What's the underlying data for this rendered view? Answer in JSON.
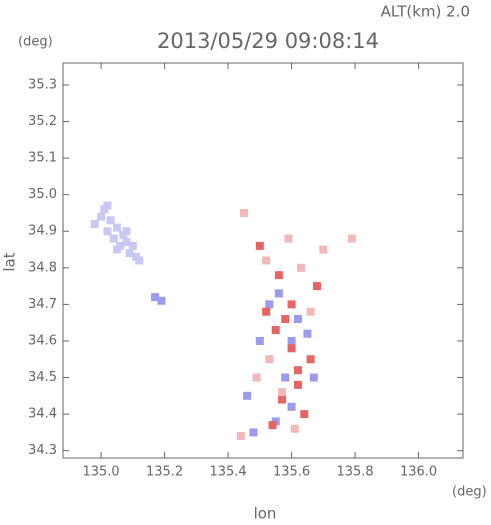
{
  "chart_data": {
    "type": "scatter",
    "title": "2013/05/29 09:08:14",
    "subtitle": "ALT(km) 2.0",
    "x_label": "lon",
    "y_label": "lat",
    "x_unit": "(deg)",
    "y_unit": "(deg)",
    "xlim": [
      134.88,
      136.14
    ],
    "ylim": [
      34.28,
      35.36
    ],
    "xticks": [
      {
        "value": 135,
        "label": "135.0"
      },
      135.2,
      135.4,
      135.6,
      135.8,
      {
        "value": 136,
        "label": "136.0"
      }
    ],
    "yticks": [
      {
        "value": 34.3,
        "label": "34.3"
      },
      34.4,
      34.5,
      34.6,
      34.7,
      34.8,
      34.9,
      {
        "value": 35,
        "label": "35.0"
      },
      35.1,
      35.2,
      35.3
    ],
    "series": [
      {
        "color": "#c8c8f2",
        "x": [
          134.98,
          135.0,
          135.01,
          135.02,
          135.03,
          135.04,
          135.05,
          135.06,
          135.07,
          135.08,
          135.09,
          135.1,
          135.11,
          135.12,
          135.02,
          135.05,
          135.08
        ],
        "y": [
          34.92,
          34.94,
          34.96,
          34.9,
          34.93,
          34.88,
          34.91,
          34.86,
          34.89,
          34.87,
          34.84,
          34.86,
          34.83,
          34.82,
          34.97,
          34.85,
          34.9
        ]
      },
      {
        "color": "#9a9aee",
        "x": [
          135.17,
          135.19,
          135.56,
          135.6,
          135.5,
          135.67,
          135.48,
          135.55,
          135.62,
          135.58,
          135.65,
          135.53,
          135.6,
          135.46
        ],
        "y": [
          34.72,
          34.71,
          34.73,
          34.6,
          34.6,
          34.5,
          34.35,
          34.38,
          34.66,
          34.5,
          34.62,
          34.7,
          34.42,
          34.45
        ]
      },
      {
        "color": "#e86464",
        "x": [
          135.68,
          135.62,
          135.58,
          135.55,
          135.64,
          135.6,
          135.5,
          135.62,
          135.52,
          135.56,
          135.6,
          135.57,
          135.66,
          135.54
        ],
        "y": [
          34.75,
          34.52,
          34.66,
          34.63,
          34.4,
          34.58,
          34.86,
          34.48,
          34.68,
          34.78,
          34.7,
          34.44,
          34.55,
          34.37
        ]
      },
      {
        "color": "#f2b8b8",
        "x": [
          135.45,
          135.52,
          135.59,
          135.63,
          135.7,
          135.53,
          135.57,
          135.66,
          135.61,
          135.49,
          135.79,
          135.44
        ],
        "y": [
          34.95,
          34.82,
          34.88,
          34.8,
          34.85,
          34.55,
          34.46,
          34.68,
          34.36,
          34.5,
          34.88,
          34.34
        ]
      }
    ]
  }
}
